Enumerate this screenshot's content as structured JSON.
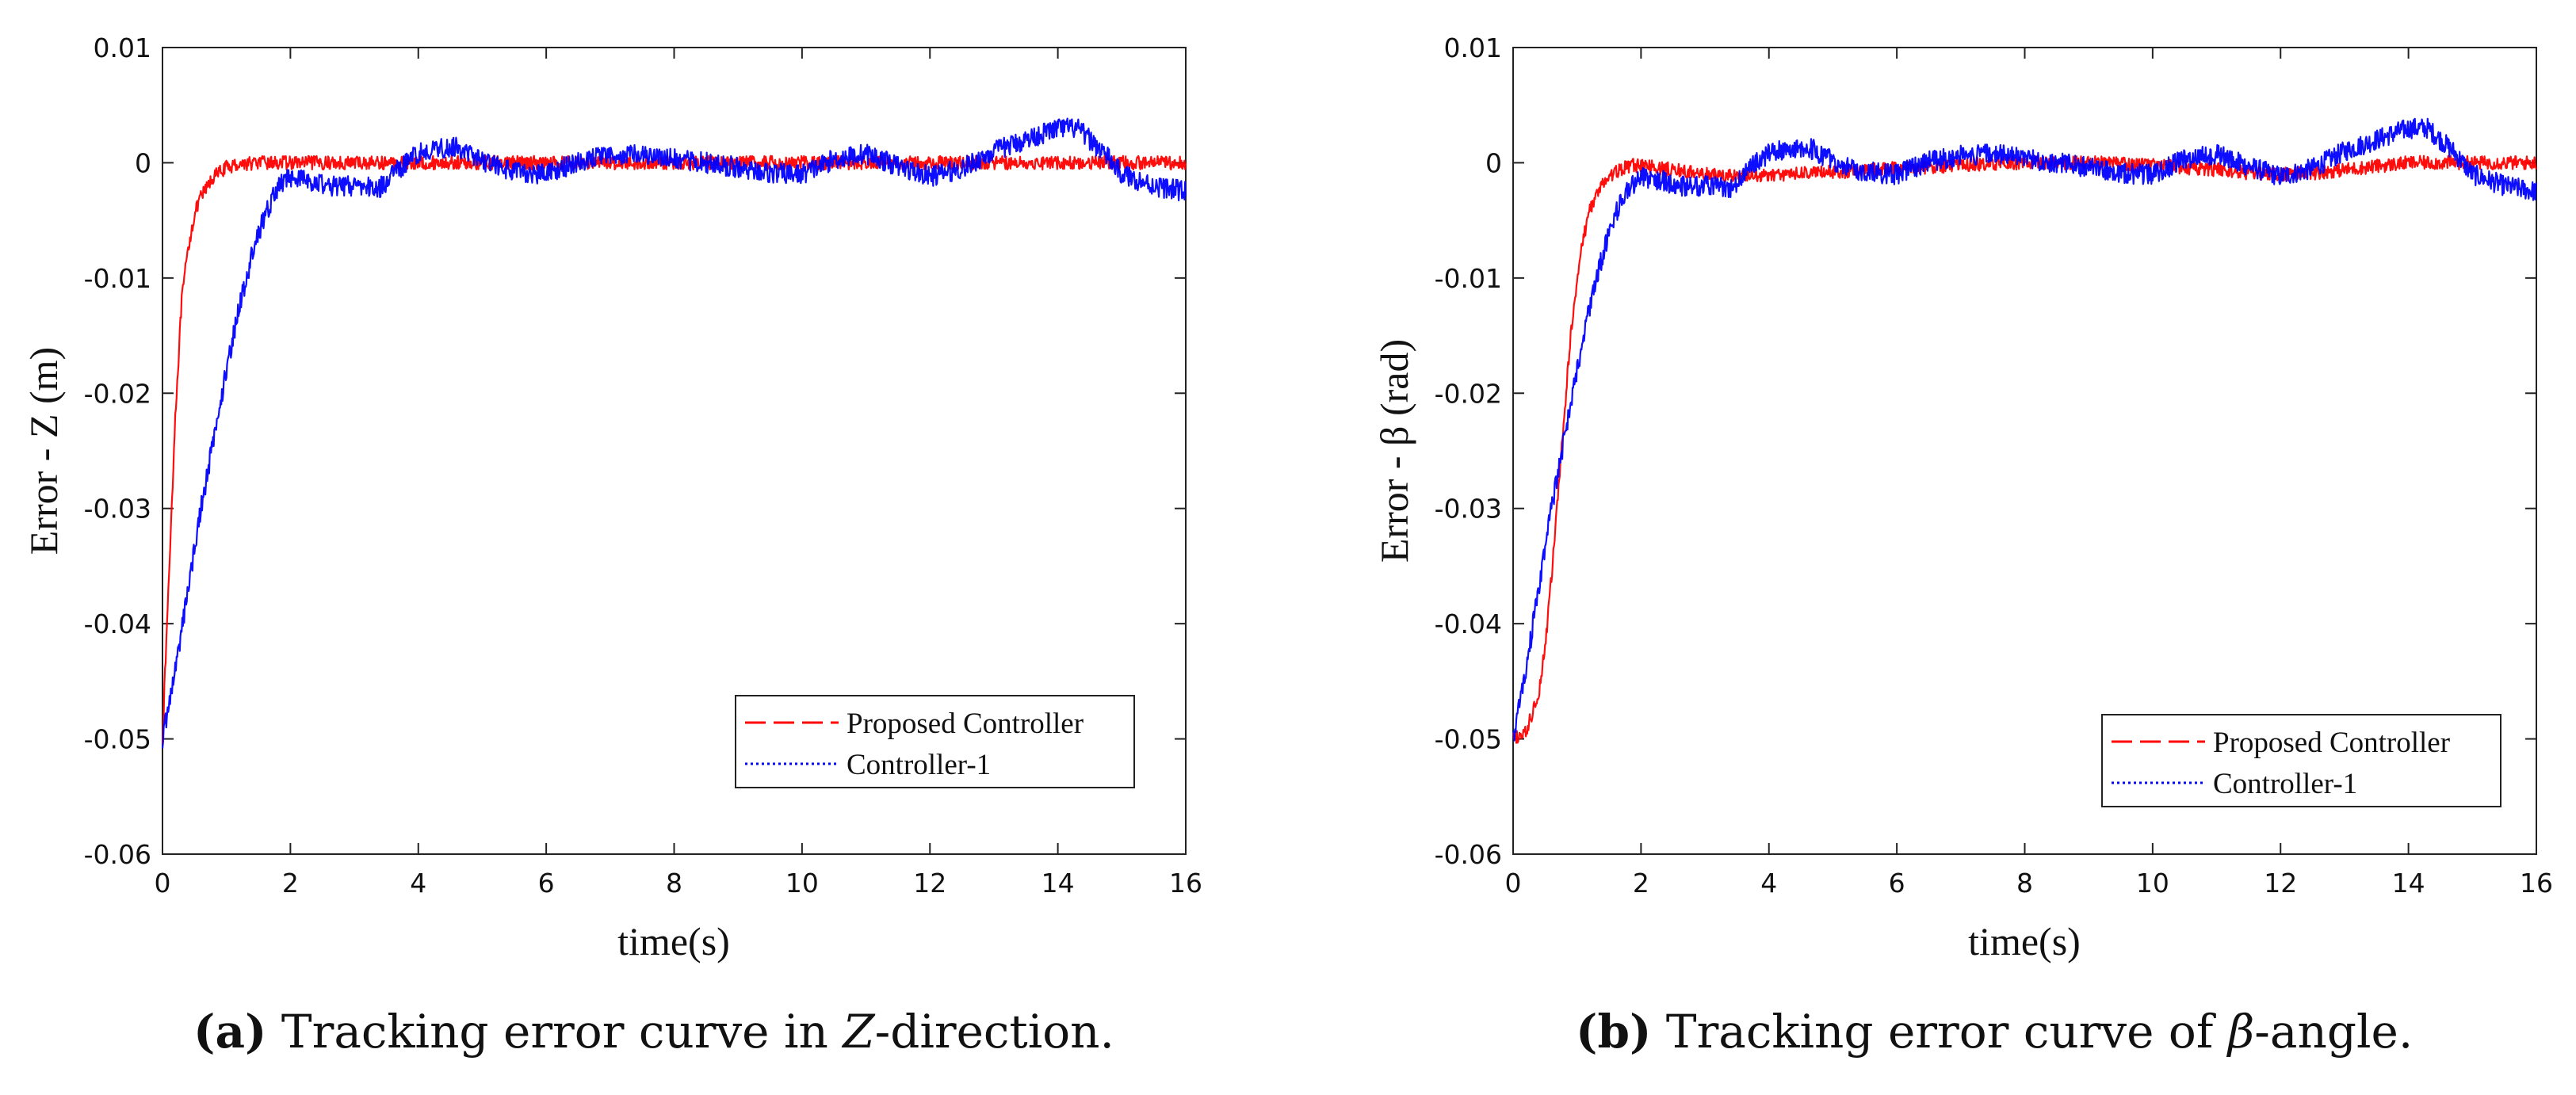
{
  "figure": {
    "background": "#ffffff"
  },
  "chart_data": [
    {
      "type": "line",
      "panel": "a",
      "xlabel": "time(s)",
      "ylabel": "Error - Z (m)",
      "xlim": [
        0,
        16
      ],
      "ylim": [
        -0.06,
        0.01
      ],
      "xticks": [
        0,
        2,
        4,
        6,
        8,
        10,
        12,
        14,
        16
      ],
      "yticks": [
        -0.06,
        -0.05,
        -0.04,
        -0.03,
        -0.02,
        -0.01,
        0,
        0.01
      ],
      "xtick_labels": [
        "0",
        "2",
        "4",
        "6",
        "8",
        "10",
        "12",
        "14",
        "16"
      ],
      "ytick_labels": [
        "-0.06",
        "-0.05",
        "-0.04",
        "-0.03",
        "-0.02",
        "-0.01",
        "0",
        "0.01"
      ],
      "legend_position": "bottom-right",
      "caption": {
        "letter": "(a)",
        "pre": "Tracking error curve in ",
        "italic": "Z",
        "post": "-direction."
      },
      "series": [
        {
          "name": "Proposed Controller",
          "color": "#ff0000",
          "style": "dash-dot",
          "noise": 0.0006,
          "x": [
            0,
            0.1,
            0.2,
            0.3,
            0.4,
            0.5,
            0.6,
            0.8,
            1.0,
            1.2,
            1.5,
            2,
            4,
            6,
            8,
            10,
            12,
            14,
            16
          ],
          "y": [
            -0.05,
            -0.036,
            -0.022,
            -0.012,
            -0.0075,
            -0.0045,
            -0.003,
            -0.0012,
            -0.0004,
            -0.0001,
            0,
            0,
            0,
            0,
            0,
            0,
            0,
            0,
            0
          ]
        },
        {
          "name": "Controller-1",
          "color": "#0000ff",
          "style": "dotted",
          "noise": 0.0009,
          "x": [
            0,
            0.2,
            0.4,
            0.6,
            0.8,
            1.0,
            1.2,
            1.4,
            1.6,
            1.8,
            2.0,
            2.3,
            2.6,
            3.0,
            3.4,
            3.7,
            4.0,
            4.3,
            4.6,
            5.0,
            5.5,
            6.0,
            6.5,
            7.0,
            7.5,
            8.0,
            8.5,
            9.0,
            9.5,
            10.0,
            10.5,
            11.0,
            11.5,
            12.0,
            12.5,
            13.0,
            13.5,
            14.0,
            14.3,
            14.7,
            15.0,
            15.5,
            16.0
          ],
          "y": [
            -0.05,
            -0.044,
            -0.037,
            -0.03,
            -0.024,
            -0.018,
            -0.0125,
            -0.008,
            -0.0045,
            -0.0022,
            -0.0012,
            -0.0015,
            -0.002,
            -0.002,
            -0.0022,
            -0.0005,
            0.0008,
            0.0013,
            0.0014,
            0.0002,
            -0.0008,
            -0.001,
            0.0001,
            0.0006,
            0.0008,
            0.0004,
            0,
            -0.0004,
            -0.0009,
            -0.001,
            0.0003,
            0.0008,
            -0.0003,
            -0.0012,
            -0.0005,
            0.001,
            0.002,
            0.003,
            0.003,
            0.001,
            -0.001,
            -0.002,
            -0.0025
          ]
        }
      ]
    },
    {
      "type": "line",
      "panel": "b",
      "xlabel": "time(s)",
      "ylabel": "Error - β (rad)",
      "xlim": [
        0,
        16
      ],
      "ylim": [
        -0.06,
        0.01
      ],
      "xticks": [
        0,
        2,
        4,
        6,
        8,
        10,
        12,
        14,
        16
      ],
      "yticks": [
        -0.06,
        -0.05,
        -0.04,
        -0.03,
        -0.02,
        -0.01,
        0,
        0.01
      ],
      "xtick_labels": [
        "0",
        "2",
        "4",
        "6",
        "8",
        "10",
        "12",
        "14",
        "16"
      ],
      "ytick_labels": [
        "-0.06",
        "-0.05",
        "-0.04",
        "-0.03",
        "-0.02",
        "-0.01",
        "0",
        "0.01"
      ],
      "legend_position": "bottom-right",
      "caption": {
        "letter": "(b)",
        "pre": "Tracking error curve of ",
        "italic": "β",
        "post": "-angle."
      },
      "series": [
        {
          "name": "Proposed Controller",
          "color": "#ff0000",
          "style": "dash-dot",
          "noise": 0.0006,
          "x": [
            0,
            0.2,
            0.4,
            0.5,
            0.6,
            0.7,
            0.8,
            0.9,
            1.0,
            1.1,
            1.2,
            1.4,
            1.6,
            1.8,
            2.0,
            2.5,
            3.0,
            3.5,
            4.0,
            4.5,
            5.0,
            6.0,
            7.0,
            8.0,
            9.0,
            10.0,
            11.0,
            11.5,
            12.0,
            12.5,
            13.0,
            14.0,
            15.0,
            16.0
          ],
          "y": [
            -0.05,
            -0.0495,
            -0.046,
            -0.042,
            -0.036,
            -0.029,
            -0.022,
            -0.015,
            -0.01,
            -0.0065,
            -0.004,
            -0.0018,
            -0.0008,
            -0.0003,
            -0.0002,
            -0.0006,
            -0.001,
            -0.0012,
            -0.0011,
            -0.0009,
            -0.0008,
            -0.0005,
            -0.0002,
            0,
            0,
            -0.0002,
            -0.0006,
            -0.0009,
            -0.001,
            -0.0009,
            -0.0006,
            0,
            0,
            0
          ]
        },
        {
          "name": "Controller-1",
          "color": "#0000ff",
          "style": "dotted",
          "noise": 0.0009,
          "x": [
            0,
            0.2,
            0.4,
            0.6,
            0.8,
            1.0,
            1.2,
            1.4,
            1.6,
            1.8,
            2.0,
            2.3,
            2.6,
            3.0,
            3.4,
            3.7,
            4.0,
            4.3,
            4.6,
            5.0,
            5.5,
            6.0,
            6.5,
            7.0,
            7.5,
            8.0,
            8.5,
            9.0,
            9.5,
            10.0,
            10.5,
            11.0,
            11.5,
            12.0,
            12.5,
            13.0,
            13.5,
            14.0,
            14.3,
            14.7,
            15.0,
            15.5,
            16.0
          ],
          "y": [
            -0.05,
            -0.044,
            -0.037,
            -0.03,
            -0.024,
            -0.018,
            -0.0125,
            -0.008,
            -0.0045,
            -0.0022,
            -0.0012,
            -0.0015,
            -0.002,
            -0.002,
            -0.0022,
            -0.0005,
            0.0008,
            0.0013,
            0.0014,
            0.0002,
            -0.0008,
            -0.001,
            0.0001,
            0.0006,
            0.0008,
            0.0004,
            0,
            -0.0004,
            -0.0009,
            -0.001,
            0.0003,
            0.0008,
            -0.0003,
            -0.0012,
            -0.0005,
            0.001,
            0.002,
            0.003,
            0.003,
            0.001,
            -0.001,
            -0.002,
            -0.0025
          ]
        }
      ]
    }
  ]
}
